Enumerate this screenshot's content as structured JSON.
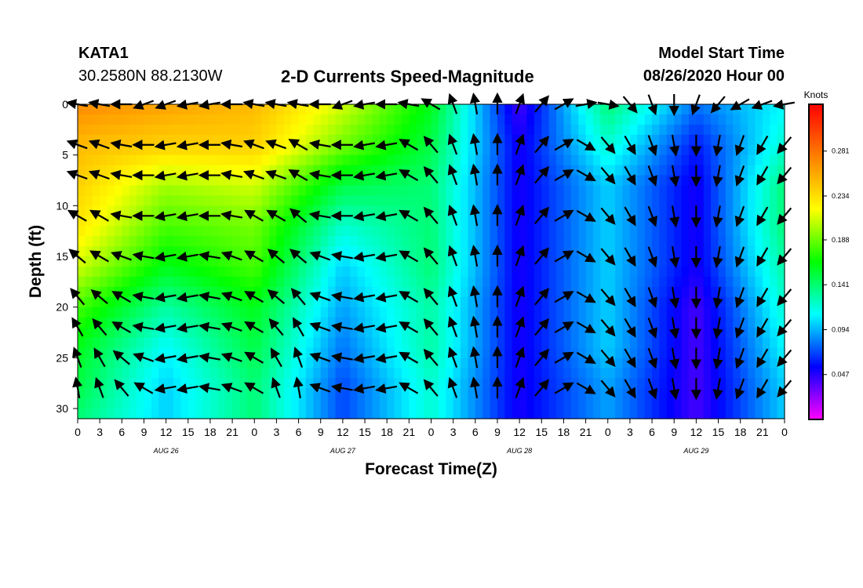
{
  "header": {
    "station_id": "KATA1",
    "station_coords": "30.2580N 88.2130W",
    "title": "2-D Currents Speed-Magnitude",
    "model_start_label": "Model Start Time",
    "model_start_value": "08/26/2020 Hour 00"
  },
  "chart_data": {
    "type": "heatmap",
    "title": "2-D Currents Speed-Magnitude",
    "xlabel": "Forecast Time(Z)",
    "ylabel": "Depth (ft)",
    "x_range_hours": [
      0,
      96
    ],
    "y_range_ft": [
      0,
      31
    ],
    "y_inverted": true,
    "x_ticks": [
      "0",
      "3",
      "6",
      "9",
      "12",
      "15",
      "18",
      "21",
      "0",
      "3",
      "6",
      "9",
      "12",
      "15",
      "18",
      "21",
      "0",
      "3",
      "6",
      "9",
      "12",
      "15",
      "18",
      "21",
      "0",
      "3",
      "6",
      "9",
      "12",
      "15",
      "18",
      "21",
      "0"
    ],
    "day_labels": [
      "AUG 26",
      "AUG 27",
      "AUG 28",
      "AUG 29"
    ],
    "y_ticks": [
      "0",
      "5",
      "10",
      "15",
      "20",
      "25",
      "30"
    ],
    "colorbar": {
      "unit": "Knots",
      "ticks": [
        "0.047",
        "0.094",
        "0.141",
        "0.188",
        "0.234",
        "0.281"
      ],
      "range": [
        0,
        0.33
      ],
      "colors": [
        "#ff00ff",
        "#0000ff",
        "#00ffff",
        "#00ff00",
        "#ffff00",
        "#ff8000",
        "#ff0000"
      ]
    },
    "depths_ft": [
      0,
      4,
      8,
      12,
      16,
      20,
      24,
      28,
      31
    ],
    "times_h": [
      0,
      12,
      24,
      36,
      48,
      60,
      72,
      84,
      96
    ],
    "speed_knots": [
      [
        0.27,
        0.26,
        0.25,
        0.21,
        0.16,
        0.04,
        0.14,
        0.08,
        0.11
      ],
      [
        0.25,
        0.24,
        0.24,
        0.19,
        0.15,
        0.05,
        0.12,
        0.06,
        0.12
      ],
      [
        0.24,
        0.2,
        0.21,
        0.15,
        0.14,
        0.05,
        0.1,
        0.05,
        0.14
      ],
      [
        0.23,
        0.18,
        0.19,
        0.12,
        0.14,
        0.05,
        0.1,
        0.05,
        0.14
      ],
      [
        0.21,
        0.16,
        0.18,
        0.1,
        0.14,
        0.05,
        0.1,
        0.05,
        0.13
      ],
      [
        0.18,
        0.13,
        0.16,
        0.09,
        0.13,
        0.05,
        0.1,
        0.04,
        0.12
      ],
      [
        0.16,
        0.11,
        0.15,
        0.08,
        0.13,
        0.05,
        0.1,
        0.04,
        0.11
      ],
      [
        0.15,
        0.1,
        0.14,
        0.07,
        0.12,
        0.05,
        0.09,
        0.04,
        0.1
      ],
      [
        0.14,
        0.1,
        0.14,
        0.07,
        0.12,
        0.05,
        0.09,
        0.04,
        0.1
      ]
    ],
    "vector_times_h": [
      0,
      3,
      6,
      9,
      12,
      15,
      18,
      21,
      24,
      27,
      30,
      33,
      36,
      39,
      42,
      45,
      48,
      51,
      54,
      57,
      60,
      63,
      66,
      69,
      72,
      75,
      78,
      81,
      84,
      87,
      90,
      93,
      96
    ],
    "vector_depths_ft": [
      0,
      4,
      7,
      11,
      15,
      19,
      22,
      25,
      28
    ],
    "vector_direction_deg": [
      [
        280,
        280,
        270,
        250,
        250,
        260,
        260,
        270,
        280,
        280,
        280,
        270,
        250,
        260,
        270,
        280,
        300,
        340,
        350,
        0,
        20,
        40,
        60,
        80,
        100,
        140,
        160,
        180,
        200,
        220,
        240,
        250,
        260
      ],
      [
        290,
        290,
        280,
        270,
        260,
        260,
        270,
        280,
        290,
        290,
        300,
        280,
        270,
        260,
        260,
        300,
        320,
        340,
        350,
        0,
        20,
        40,
        60,
        120,
        140,
        150,
        160,
        170,
        180,
        190,
        200,
        210,
        220
      ],
      [
        290,
        290,
        280,
        270,
        260,
        260,
        270,
        280,
        290,
        290,
        300,
        280,
        270,
        260,
        260,
        300,
        320,
        340,
        350,
        0,
        20,
        40,
        60,
        120,
        140,
        150,
        160,
        170,
        180,
        190,
        200,
        210,
        220
      ],
      [
        300,
        300,
        280,
        270,
        260,
        260,
        270,
        280,
        300,
        300,
        310,
        280,
        270,
        260,
        260,
        300,
        320,
        340,
        350,
        0,
        20,
        40,
        60,
        120,
        140,
        150,
        160,
        170,
        180,
        190,
        200,
        210,
        220
      ],
      [
        310,
        300,
        290,
        280,
        260,
        260,
        280,
        290,
        300,
        310,
        310,
        290,
        280,
        260,
        260,
        300,
        320,
        340,
        350,
        0,
        20,
        40,
        60,
        120,
        140,
        150,
        160,
        170,
        180,
        190,
        200,
        210,
        220
      ],
      [
        320,
        310,
        300,
        280,
        260,
        260,
        280,
        290,
        300,
        310,
        320,
        290,
        280,
        260,
        260,
        300,
        320,
        340,
        350,
        0,
        20,
        40,
        60,
        120,
        140,
        150,
        160,
        170,
        180,
        190,
        200,
        210,
        220
      ],
      [
        330,
        320,
        300,
        280,
        260,
        260,
        280,
        290,
        300,
        320,
        330,
        290,
        280,
        260,
        260,
        300,
        320,
        340,
        350,
        0,
        20,
        40,
        60,
        120,
        140,
        150,
        160,
        170,
        180,
        190,
        200,
        210,
        220
      ],
      [
        340,
        330,
        310,
        290,
        260,
        260,
        280,
        290,
        300,
        330,
        340,
        290,
        280,
        260,
        260,
        300,
        320,
        340,
        350,
        0,
        20,
        40,
        60,
        120,
        140,
        150,
        160,
        170,
        180,
        190,
        200,
        210,
        220
      ],
      [
        350,
        340,
        320,
        300,
        260,
        260,
        280,
        290,
        300,
        340,
        350,
        290,
        280,
        260,
        260,
        300,
        320,
        340,
        350,
        0,
        20,
        40,
        60,
        120,
        140,
        150,
        160,
        170,
        180,
        190,
        200,
        210,
        220
      ]
    ]
  }
}
